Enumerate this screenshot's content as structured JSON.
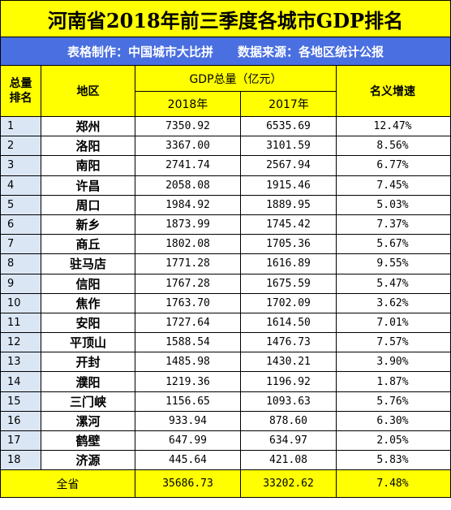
{
  "title": "河南省2018年前三季度各城市GDP排名",
  "subtitle": {
    "maker": "表格制作：中国城市大比拼",
    "source": "数据来源：各地区统计公报"
  },
  "header": {
    "rank": [
      "总量",
      "排名"
    ],
    "region": "地区",
    "gdp": "GDP总量（亿元）",
    "y2018": "2018年",
    "y2017": "2017年",
    "growth": "名义增速"
  },
  "rows": [
    {
      "rank": "1",
      "region": "郑州",
      "y2018": "7350.92",
      "y2017": "6535.69",
      "growth": "12.47%"
    },
    {
      "rank": "2",
      "region": "洛阳",
      "y2018": "3367.00",
      "y2017": "3101.59",
      "growth": "8.56%"
    },
    {
      "rank": "3",
      "region": "南阳",
      "y2018": "2741.74",
      "y2017": "2567.94",
      "growth": "6.77%"
    },
    {
      "rank": "4",
      "region": "许昌",
      "y2018": "2058.08",
      "y2017": "1915.46",
      "growth": "7.45%"
    },
    {
      "rank": "5",
      "region": "周口",
      "y2018": "1984.92",
      "y2017": "1889.95",
      "growth": "5.03%"
    },
    {
      "rank": "6",
      "region": "新乡",
      "y2018": "1873.99",
      "y2017": "1745.42",
      "growth": "7.37%"
    },
    {
      "rank": "7",
      "region": "商丘",
      "y2018": "1802.08",
      "y2017": "1705.36",
      "growth": "5.67%"
    },
    {
      "rank": "8",
      "region": "驻马店",
      "y2018": "1771.28",
      "y2017": "1616.89",
      "growth": "9.55%"
    },
    {
      "rank": "9",
      "region": "信阳",
      "y2018": "1767.28",
      "y2017": "1675.59",
      "growth": "5.47%"
    },
    {
      "rank": "10",
      "region": "焦作",
      "y2018": "1763.70",
      "y2017": "1702.09",
      "growth": "3.62%"
    },
    {
      "rank": "11",
      "region": "安阳",
      "y2018": "1727.64",
      "y2017": "1614.50",
      "growth": "7.01%"
    },
    {
      "rank": "12",
      "region": "平顶山",
      "y2018": "1588.54",
      "y2017": "1476.73",
      "growth": "7.57%"
    },
    {
      "rank": "13",
      "region": "开封",
      "y2018": "1485.98",
      "y2017": "1430.21",
      "growth": "3.90%"
    },
    {
      "rank": "14",
      "region": "濮阳",
      "y2018": "1219.36",
      "y2017": "1196.92",
      "growth": "1.87%"
    },
    {
      "rank": "15",
      "region": "三门峡",
      "y2018": "1156.65",
      "y2017": "1093.63",
      "growth": "5.76%"
    },
    {
      "rank": "16",
      "region": "漯河",
      "y2018": "933.94",
      "y2017": "878.60",
      "growth": "6.30%"
    },
    {
      "rank": "17",
      "region": "鹤壁",
      "y2018": "647.99",
      "y2017": "634.97",
      "growth": "2.05%"
    },
    {
      "rank": "18",
      "region": "济源",
      "y2018": "445.64",
      "y2017": "421.08",
      "growth": "5.83%"
    }
  ],
  "total": {
    "label": "全省",
    "y2018": "35686.73",
    "y2017": "33202.62",
    "growth": "7.48%"
  },
  "colors": {
    "title_bg": "#ffff00",
    "subtitle_bg": "#4a6fe0",
    "rank_bg": "#dbe6f5"
  }
}
